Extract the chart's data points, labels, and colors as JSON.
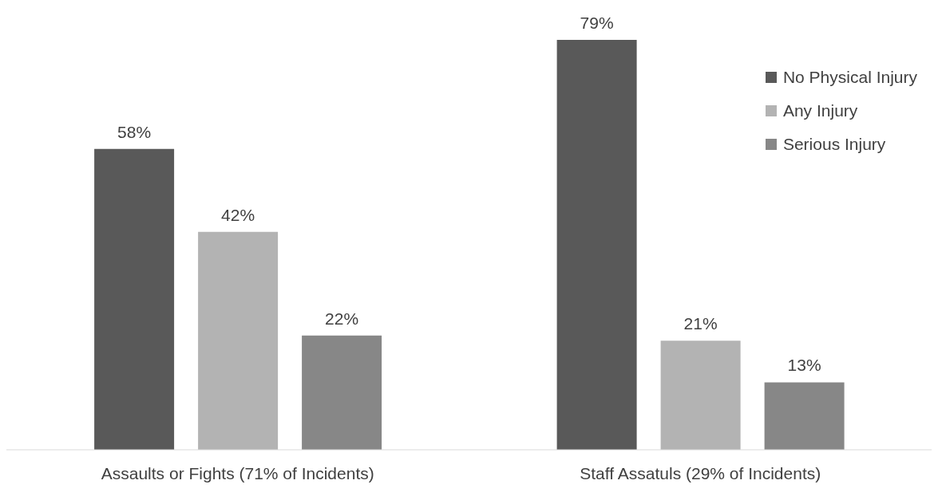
{
  "chart_data": {
    "type": "bar",
    "categories": [
      "Assaults or Fights (71% of Incidents)",
      "Staff Assatuls (29% of Incidents)"
    ],
    "series": [
      {
        "name": "No Physical Injury",
        "color": "#595959",
        "values": [
          58,
          79
        ],
        "value_labels": [
          "58%",
          "79%"
        ]
      },
      {
        "name": "Any Injury",
        "color": "#b3b3b3",
        "values": [
          42,
          21
        ],
        "value_labels": [
          "42%",
          "21%"
        ]
      },
      {
        "name": "Serious Injury",
        "color": "#878787",
        "values": [
          22,
          13
        ],
        "value_labels": [
          "22%",
          "13%"
        ]
      }
    ],
    "legend": "top right",
    "grid": false
  }
}
